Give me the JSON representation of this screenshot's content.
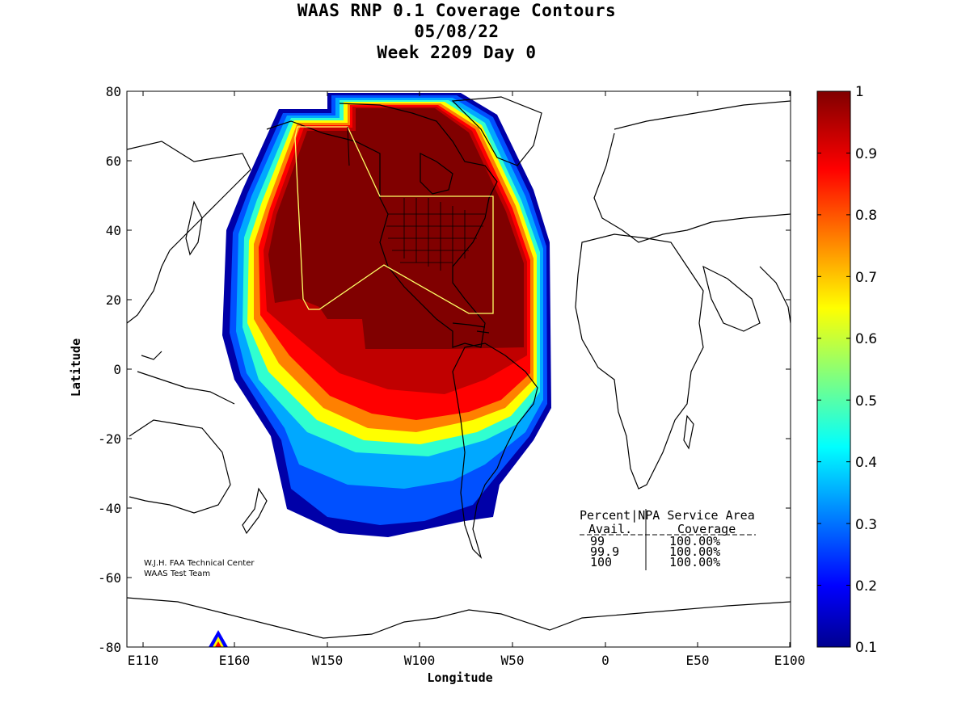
{
  "title": {
    "line1": "WAAS RNP 0.1 Coverage Contours",
    "line2": "05/08/22",
    "line3": "Week 2209 Day 0"
  },
  "axes": {
    "xlabel": "Longitude",
    "ylabel": "Latitude",
    "x_ticks": [
      "E110",
      "E160",
      "W150",
      "W100",
      "W50",
      "0",
      "E50",
      "E100"
    ],
    "y_ticks": [
      "80",
      "60",
      "40",
      "20",
      "0",
      "-20",
      "-40",
      "-60",
      "-80"
    ]
  },
  "colorbar": {
    "ticks": [
      "1",
      "0.9",
      "0.8",
      "0.7",
      "0.6",
      "0.5",
      "0.4",
      "0.3",
      "0.2",
      "0.1"
    ],
    "range": [
      0.1,
      1
    ],
    "colormap": "jet"
  },
  "stats_table": {
    "header1": "Percent|NPA Service Area",
    "header2_col1": "Avail.",
    "header2_col2": "Coverage",
    "rows": [
      {
        "avail": "99",
        "coverage": "100.00%"
      },
      {
        "avail": "99.9",
        "coverage": "100.00%"
      },
      {
        "avail": "100",
        "coverage": "100.00%"
      }
    ]
  },
  "credit": {
    "line1": "W.J.H. FAA Technical Center",
    "line2": "WAAS Test Team"
  },
  "colors": {
    "dark_red": "#800000",
    "service_area_outline": "#ffff66",
    "coastline": "#000000"
  }
}
